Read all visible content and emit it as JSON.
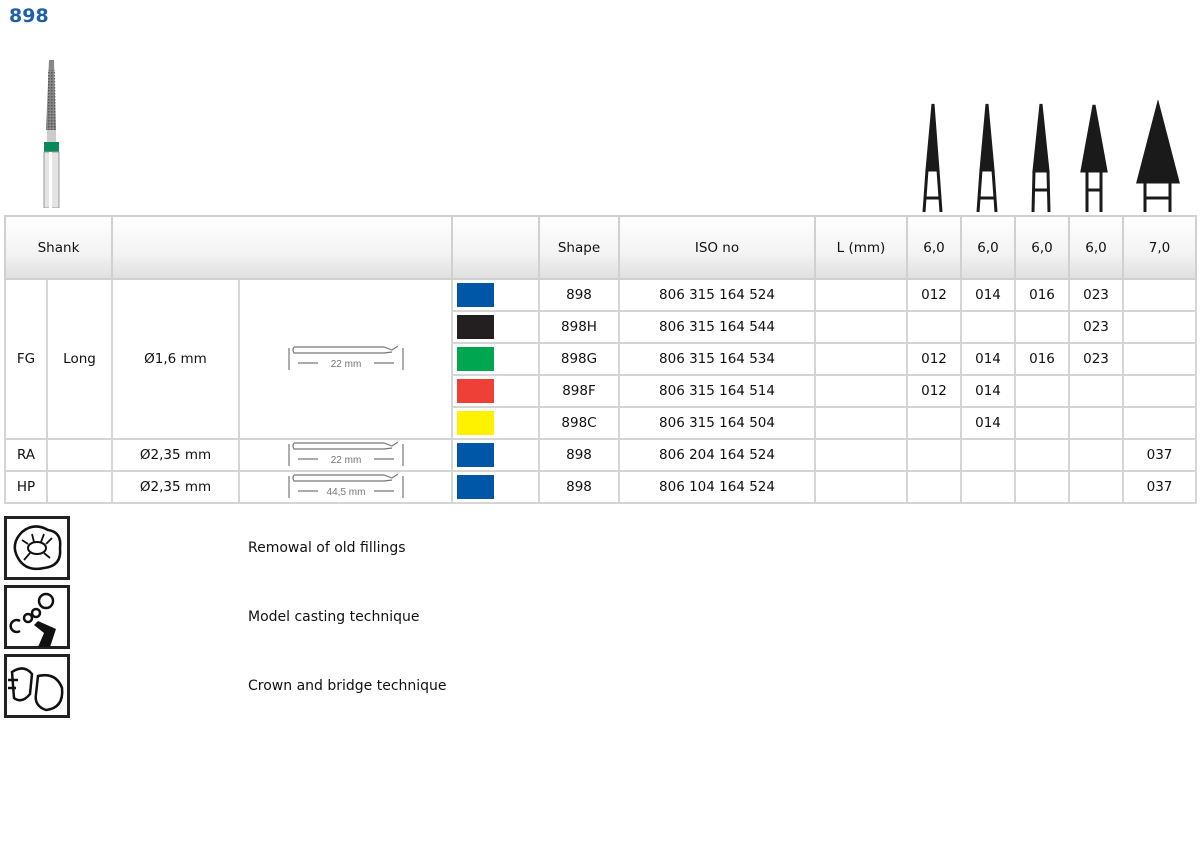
{
  "title": "898",
  "header": {
    "shank": "Shank",
    "shape": "Shape",
    "iso": "ISO no",
    "length": "L (mm)",
    "sizes": [
      "6,0",
      "6,0",
      "6,0",
      "6,0",
      "7,0"
    ]
  },
  "fg": {
    "type": "FG",
    "length": "Long",
    "diameter": "Ø1,6 mm",
    "drawing_label": "22 mm"
  },
  "rows": [
    {
      "color": "#0057a8",
      "shape": "898",
      "iso": "806 315 164 524",
      "sizes": [
        "012",
        "014",
        "016",
        "023",
        ""
      ]
    },
    {
      "color": "#231f20",
      "shape": "898H",
      "iso": "806 315 164 544",
      "sizes": [
        "",
        "",
        "",
        "023",
        ""
      ]
    },
    {
      "color": "#00a650",
      "shape": "898G",
      "iso": "806 315 164 534",
      "sizes": [
        "012",
        "014",
        "016",
        "023",
        ""
      ]
    },
    {
      "color": "#ee4036",
      "shape": "898F",
      "iso": "806 315 164 514",
      "sizes": [
        "012",
        "014",
        "",
        "",
        ""
      ]
    },
    {
      "color": "#fff200",
      "shape": "898C",
      "iso": "806 315 164 504",
      "sizes": [
        "",
        "014",
        "",
        "",
        ""
      ]
    }
  ],
  "ra": {
    "type": "RA",
    "diameter": "Ø2,35 mm",
    "drawing_label": "22 mm",
    "color": "#0057a8",
    "shape": "898",
    "iso": "806 204 164 524",
    "sizes": [
      "",
      "",
      "",
      "",
      "037"
    ]
  },
  "hp": {
    "type": "HP",
    "diameter": "Ø2,35 mm",
    "drawing_label": "44,5 mm",
    "color": "#0057a8",
    "shape": "898",
    "iso": "806 104 164 524",
    "sizes": [
      "",
      "",
      "",
      "",
      "037"
    ]
  },
  "indications": [
    {
      "icon": "old-fillings-icon",
      "label": "Remowal of old fillings"
    },
    {
      "icon": "model-casting-icon",
      "label": "Model casting technique"
    },
    {
      "icon": "crown-bridge-icon",
      "label": "Crown and bridge technique"
    }
  ]
}
